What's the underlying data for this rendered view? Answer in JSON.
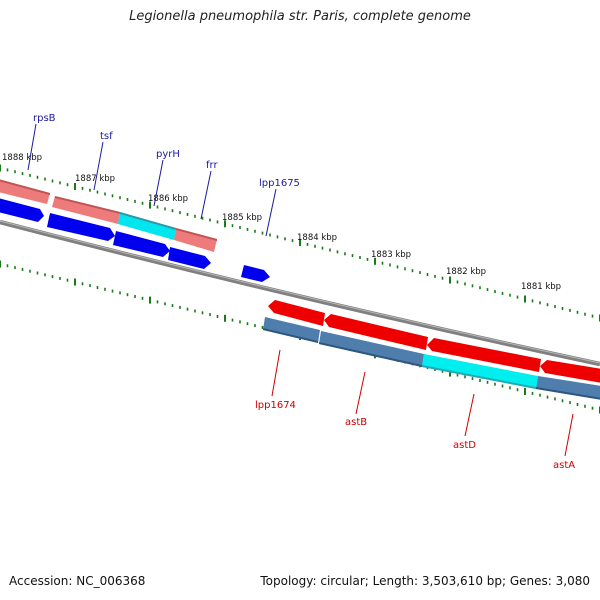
{
  "title": "Legionella pneumophila str. Paris, complete genome",
  "footer": {
    "accession": "Accession: NC_006368",
    "summary": "Topology: circular; Length: 3,503,610 bp; Genes: 3,080"
  },
  "colors": {
    "backbone": "#808080",
    "forward_gene": "#0000ee",
    "forward_gene_light": "#ee7b7b",
    "reverse_gene": "#ee0000",
    "reverse_gene_dark": "#4f7ead",
    "highlight": "#00e5ee",
    "tick": "#1a7a1a",
    "forward_label": "#1a1aa0",
    "reverse_label": "#cc0000"
  },
  "kbp_labels": [
    "1888 kbp",
    "1887 kbp",
    "1886 kbp",
    "1885 kbp",
    "1884 kbp",
    "1883 kbp",
    "1882 kbp",
    "1881 kbp"
  ],
  "forward_gene_labels": [
    "rpsB",
    "tsf",
    "pyrH",
    "frr",
    "lpp1675"
  ],
  "reverse_gene_labels": [
    "lpp1674",
    "astB",
    "astD",
    "astA"
  ]
}
